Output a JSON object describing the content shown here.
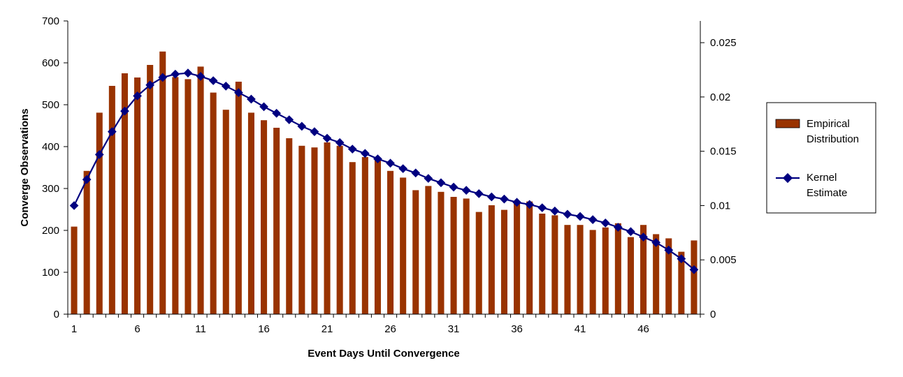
{
  "chart_data": {
    "type": "bar",
    "title": "",
    "xlabel": "Event Days Until Convergence",
    "ylabel": "Converge Observations",
    "y2label": "",
    "x": [
      1,
      2,
      3,
      4,
      5,
      6,
      7,
      8,
      9,
      10,
      11,
      12,
      13,
      14,
      15,
      16,
      17,
      18,
      19,
      20,
      21,
      22,
      23,
      24,
      25,
      26,
      27,
      28,
      29,
      30,
      31,
      32,
      33,
      34,
      35,
      36,
      37,
      38,
      39,
      40,
      41,
      42,
      43,
      44,
      45,
      46,
      47,
      48,
      49,
      50
    ],
    "x_tick_labels": [
      "1",
      "6",
      "11",
      "16",
      "21",
      "26",
      "31",
      "36",
      "41",
      "46"
    ],
    "ylim": [
      0,
      700
    ],
    "y_ticks": [
      "0",
      "100",
      "200",
      "300",
      "400",
      "500",
      "600",
      "700"
    ],
    "y2lim": [
      0,
      0.027
    ],
    "y2_ticks": [
      "0",
      "0.005",
      "0.01",
      "0.015",
      "0.02",
      "0.025"
    ],
    "grid": false,
    "legend_position": "right",
    "series": [
      {
        "name": "Empirical Distribution",
        "type": "bar",
        "axis": "left",
        "color": "#993300",
        "values": [
          209,
          342,
          481,
          545,
          575,
          565,
          595,
          627,
          566,
          561,
          591,
          529,
          488,
          555,
          481,
          463,
          445,
          420,
          402,
          398,
          410,
          402,
          363,
          375,
          369,
          342,
          326,
          296,
          306,
          292,
          280,
          276,
          244,
          260,
          249,
          266,
          269,
          240,
          236,
          213,
          213,
          201,
          207,
          217,
          184,
          213,
          191,
          181,
          149,
          176
        ]
      },
      {
        "name": "Kernel Estimate",
        "type": "line",
        "axis": "right",
        "color": "#000080",
        "values": [
          0.01,
          0.0124,
          0.0147,
          0.0168,
          0.0187,
          0.0201,
          0.0211,
          0.0218,
          0.0221,
          0.0222,
          0.0219,
          0.0215,
          0.021,
          0.0204,
          0.0198,
          0.0191,
          0.0185,
          0.0179,
          0.0173,
          0.0168,
          0.0162,
          0.0158,
          0.0152,
          0.0148,
          0.0143,
          0.0139,
          0.0134,
          0.013,
          0.0125,
          0.0121,
          0.0117,
          0.0114,
          0.0111,
          0.0108,
          0.0106,
          0.0103,
          0.0101,
          0.0098,
          0.0095,
          0.0092,
          0.009,
          0.0087,
          0.0084,
          0.008,
          0.0076,
          0.0071,
          0.0066,
          0.0059,
          0.0051,
          0.0041
        ]
      }
    ]
  }
}
